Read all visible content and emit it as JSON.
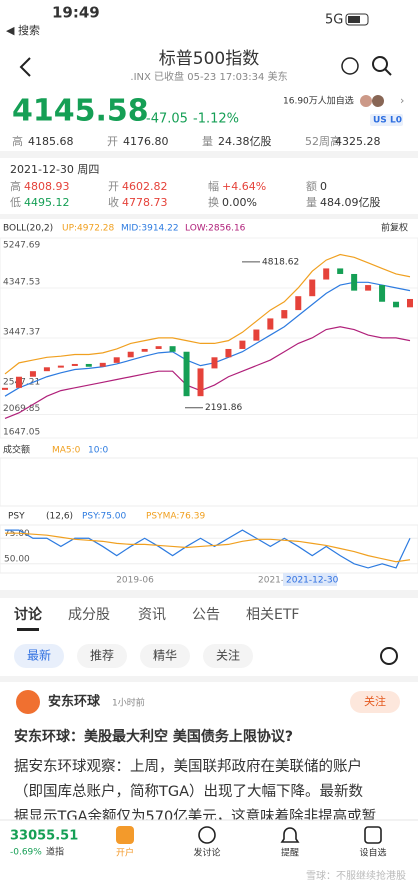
{
  "status": {
    "time": "19:49",
    "network": "5G",
    "back": "◀ 搜索"
  },
  "header": {
    "title": "标普500指数",
    "subtitle": ".INX 已收盘 05-23 17:03:34 美东"
  },
  "quote": {
    "price": "4145.58",
    "change": "-47.05",
    "pct": "-1.12%",
    "followers": "16.90万人加自选",
    "badges": [
      "US",
      "L0"
    ]
  },
  "stats": [
    [
      "高",
      "4185.68"
    ],
    [
      "开",
      "4176.80"
    ],
    [
      "量",
      "24.38亿股"
    ],
    [
      "52周高",
      "4325.28"
    ]
  ],
  "day": {
    "date": "2021-12-30 周四",
    "rows": [
      [
        [
          "高",
          "4808.93"
        ],
        [
          "开",
          "4602.82"
        ],
        [
          "幅",
          "+4.64%"
        ],
        [
          "额",
          "0"
        ]
      ],
      [
        [
          "低",
          "4495.12"
        ],
        [
          "收",
          "4778.73"
        ],
        [
          "换",
          "0.00%"
        ],
        [
          "量",
          "484.09亿股"
        ]
      ]
    ]
  },
  "chart_data": {
    "type": "candlestick",
    "legend": [
      "BOLL(20,2)",
      "UP:4972.28",
      "MID:3914.22",
      "LOW:2856.16"
    ],
    "adjust": "前复权",
    "ylim": [
      1647.05,
      5247.69
    ],
    "yticks": [
      5247.69,
      4347.53,
      3447.37,
      2547.21,
      2069.85,
      1647.05
    ],
    "annotations": [
      {
        "text": "4818.62",
        "value": 4818.62
      },
      {
        "text": "2191.86",
        "value": 2191.86
      }
    ],
    "closes": [
      2550,
      2750,
      2850,
      2920,
      2950,
      2980,
      2930,
      3000,
      3100,
      3200,
      3250,
      3300,
      3200,
      2400,
      2900,
      3100,
      3250,
      3400,
      3600,
      3800,
      3950,
      4200,
      4500,
      4700,
      4600,
      4300,
      4400,
      4100,
      4000,
      4150
    ],
    "series": [
      {
        "color": "#f0a020",
        "values": [
          2800,
          3000,
          3050,
          3100,
          3120,
          3150,
          3150,
          3180,
          3250,
          3350,
          3400,
          3450,
          3450,
          3400,
          3350,
          3350,
          3400,
          3550,
          3750,
          3950,
          4100,
          4350,
          4650,
          4850,
          4950,
          4900,
          4800,
          4700,
          4600,
          4550
        ]
      },
      {
        "color": "#2d7be0",
        "values": [
          2400,
          2550,
          2650,
          2750,
          2820,
          2880,
          2900,
          2930,
          2980,
          3050,
          3120,
          3180,
          3200,
          3050,
          2950,
          3000,
          3100,
          3200,
          3350,
          3500,
          3650,
          3850,
          4050,
          4250,
          4400,
          4450,
          4450,
          4400,
          4350,
          4300
        ]
      },
      {
        "color": "#b0207a",
        "values": [
          2000,
          2100,
          2250,
          2400,
          2500,
          2550,
          2600,
          2650,
          2700,
          2750,
          2800,
          2850,
          2850,
          2600,
          2500,
          2600,
          2750,
          2850,
          2950,
          3050,
          3200,
          3350,
          3450,
          3600,
          3650,
          3600,
          3500,
          3450,
          3450,
          3400
        ]
      }
    ],
    "volume_legend": [
      "成交额",
      "MA5:0",
      "10:0"
    ],
    "psy": {
      "legend": [
        "PSY",
        "(12,6)",
        "PSY:75.00",
        "PSYMA:76.39"
      ],
      "ylim": [
        41,
        88
      ],
      "yticks": [
        {
          "value": 75,
          "label": "75.00"
        },
        {
          "value": 50,
          "label": "50.00"
        }
      ],
      "series": [
        {
          "color": "#2d7be0",
          "values": [
            83,
            83,
            75,
            75,
            67,
            75,
            75,
            67,
            58,
            67,
            75,
            67,
            58,
            67,
            75,
            67,
            75,
            83,
            75,
            67,
            75,
            67,
            58,
            67,
            58,
            50,
            46,
            50,
            46,
            75
          ]
        },
        {
          "color": "#f0a020",
          "values": [
            80,
            80,
            79,
            78,
            76,
            74,
            73,
            72,
            70,
            69,
            69,
            68,
            67,
            66,
            67,
            68,
            69,
            72,
            74,
            74,
            73,
            72,
            70,
            68,
            65,
            62,
            58,
            55,
            52,
            54
          ]
        }
      ]
    },
    "xlabels": [
      "2019-06",
      "2021-",
      "2021-12-30"
    ]
  },
  "tabs": [
    "讨论",
    "成分股",
    "资讯",
    "公告",
    "相关ETF"
  ],
  "chips": [
    "最新",
    "推荐",
    "精华",
    "关注"
  ],
  "post": {
    "author": "安东环球",
    "time": "1小时前",
    "follow": "关注",
    "title": "安东环球：美股最大利空 美国债务上限协议?",
    "lines": [
      "据安东环球观察：上周，美国联邦政府在美联储的账户",
      "（即国库总账户，简称TGA）出现了大幅下降。最新数",
      "据显示TGA余额仅为570亿美元，这意味着除非提高或暂"
    ]
  },
  "bottom": {
    "index_value": "33055.51",
    "index_change": "-0.69%",
    "index_name": "道指",
    "actions": [
      "开户",
      "发讨论",
      "提醒",
      "设自选"
    ],
    "watermark": "雪球：不服继续抢港股"
  }
}
